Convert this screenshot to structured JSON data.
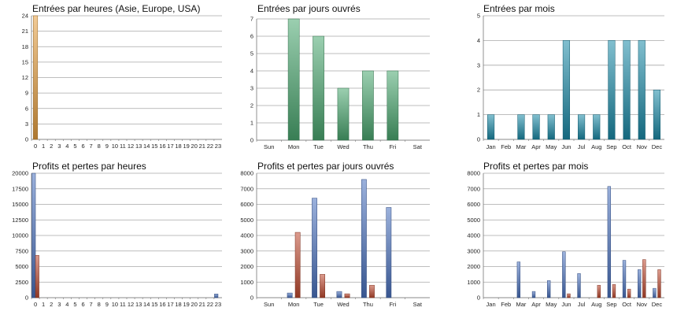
{
  "chart_data": [
    {
      "type": "bar",
      "title": "Entrées par heures (Asie, Europe, USA)",
      "categories": [
        "0",
        "1",
        "2",
        "3",
        "4",
        "5",
        "6",
        "7",
        "8",
        "9",
        "10",
        "11",
        "12",
        "13",
        "14",
        "15",
        "16",
        "17",
        "18",
        "19",
        "20",
        "21",
        "22",
        "23"
      ],
      "series": [
        {
          "values": [
            24,
            0,
            0,
            0,
            0,
            0,
            0,
            0,
            0,
            0,
            0,
            0,
            0,
            0,
            0,
            0,
            0,
            0,
            0,
            0,
            0,
            0,
            0,
            0
          ],
          "color": "#e8a040"
        }
      ],
      "yticks": [
        0,
        3,
        6,
        9,
        12,
        15,
        18,
        21,
        24
      ],
      "ylim": [
        0,
        24
      ],
      "grid": true
    },
    {
      "type": "bar",
      "title": "Entrées par jours ouvrés",
      "categories": [
        "Sun",
        "Mon",
        "Tue",
        "Wed",
        "Thu",
        "Fri",
        "Sat"
      ],
      "series": [
        {
          "values": [
            0,
            7,
            6,
            3,
            4,
            4,
            0
          ],
          "color": "#4aa870"
        }
      ],
      "yticks": [
        0,
        1,
        2,
        3,
        4,
        5,
        6,
        7
      ],
      "ylim": [
        0,
        7
      ],
      "grid": true
    },
    {
      "type": "bar",
      "title": "Entrées par mois",
      "categories": [
        "Jan",
        "Feb",
        "Mar",
        "Apr",
        "May",
        "Jun",
        "Jul",
        "Aug",
        "Sep",
        "Oct",
        "Nov",
        "Dec"
      ],
      "series": [
        {
          "values": [
            1,
            0,
            1,
            1,
            1,
            4,
            1,
            1,
            4,
            4,
            4,
            2
          ],
          "color": "#1a8aa8"
        }
      ],
      "yticks": [
        0,
        1,
        2,
        3,
        4,
        5
      ],
      "ylim": [
        0,
        5
      ],
      "grid": true
    },
    {
      "type": "bar",
      "title": "Profits et pertes par heures",
      "categories": [
        "0",
        "1",
        "2",
        "3",
        "4",
        "5",
        "6",
        "7",
        "8",
        "9",
        "10",
        "11",
        "12",
        "13",
        "14",
        "15",
        "16",
        "17",
        "18",
        "19",
        "20",
        "21",
        "22",
        "23"
      ],
      "series": [
        {
          "values": [
            20000,
            0,
            0,
            0,
            0,
            0,
            0,
            0,
            0,
            0,
            0,
            0,
            0,
            0,
            0,
            0,
            0,
            0,
            0,
            0,
            0,
            0,
            0,
            600
          ],
          "color": "#4a72c0"
        },
        {
          "values": [
            6800,
            0,
            0,
            0,
            0,
            0,
            0,
            0,
            0,
            0,
            0,
            0,
            0,
            0,
            0,
            0,
            0,
            0,
            0,
            0,
            0,
            0,
            0,
            0
          ],
          "color": "#c04a30"
        }
      ],
      "yticks": [
        0,
        2500,
        5000,
        7500,
        10000,
        12500,
        15000,
        17500,
        20000
      ],
      "ylim": [
        0,
        20000
      ],
      "grid": true
    },
    {
      "type": "bar",
      "title": "Profits et pertes par jours ouvrés",
      "categories": [
        "Sun",
        "Mon",
        "Tue",
        "Wed",
        "Thu",
        "Fri",
        "Sat"
      ],
      "series": [
        {
          "values": [
            0,
            300,
            6400,
            400,
            7600,
            5800,
            0
          ],
          "color": "#4a72c0"
        },
        {
          "values": [
            0,
            4200,
            1500,
            250,
            800,
            0,
            0
          ],
          "color": "#c04a30"
        }
      ],
      "yticks": [
        0,
        1000,
        2000,
        3000,
        4000,
        5000,
        6000,
        7000,
        8000
      ],
      "ylim": [
        0,
        8000
      ],
      "grid": true
    },
    {
      "type": "bar",
      "title": "Profits et pertes par mois",
      "categories": [
        "Jan",
        "Feb",
        "Mar",
        "Apr",
        "May",
        "Jun",
        "Jul",
        "Aug",
        "Sep",
        "Oct",
        "Nov",
        "Dec"
      ],
      "series": [
        {
          "values": [
            0,
            0,
            2300,
            400,
            1100,
            2950,
            1550,
            0,
            7150,
            2400,
            1800,
            600
          ],
          "color": "#4a72c0"
        },
        {
          "values": [
            0,
            0,
            0,
            0,
            0,
            250,
            0,
            800,
            850,
            550,
            2450,
            1800
          ],
          "color": "#c04a30"
        }
      ],
      "yticks": [
        0,
        1000,
        2000,
        3000,
        4000,
        5000,
        6000,
        7000,
        8000
      ],
      "ylim": [
        0,
        8000
      ],
      "grid": true
    }
  ]
}
